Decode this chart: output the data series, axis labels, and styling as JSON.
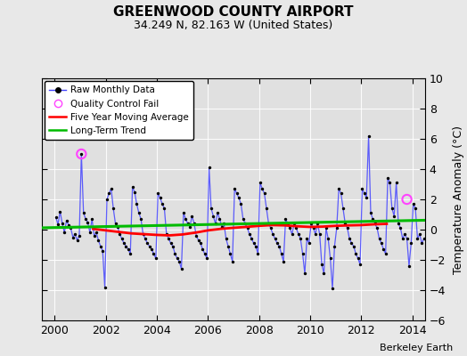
{
  "title": "GREENWOOD COUNTY AIRPORT",
  "subtitle": "34.249 N, 82.163 W (United States)",
  "ylabel": "Temperature Anomaly (°C)",
  "watermark": "Berkeley Earth",
  "ylim": [
    -6,
    10
  ],
  "xlim": [
    1999.5,
    2014.5
  ],
  "yticks": [
    -6,
    -4,
    -2,
    0,
    2,
    4,
    6,
    8,
    10
  ],
  "xticks": [
    2000,
    2002,
    2004,
    2006,
    2008,
    2010,
    2012,
    2014
  ],
  "bg_color": "#e8e8e8",
  "plot_bg_color": "#e0e0e0",
  "raw_color": "#4444ff",
  "moving_avg_color": "#ff0000",
  "trend_color": "#00bb00",
  "qc_fail_color": "#ff44ff",
  "raw_data": [
    [
      2000.042,
      0.8
    ],
    [
      2000.125,
      0.35
    ],
    [
      2000.208,
      1.2
    ],
    [
      2000.292,
      0.4
    ],
    [
      2000.375,
      -0.2
    ],
    [
      2000.458,
      0.6
    ],
    [
      2000.542,
      0.3
    ],
    [
      2000.625,
      0.1
    ],
    [
      2000.708,
      -0.5
    ],
    [
      2000.792,
      -0.3
    ],
    [
      2000.875,
      -0.7
    ],
    [
      2000.958,
      -0.4
    ],
    [
      2001.042,
      5.0
    ],
    [
      2001.125,
      1.1
    ],
    [
      2001.208,
      0.7
    ],
    [
      2001.292,
      0.5
    ],
    [
      2001.375,
      -0.2
    ],
    [
      2001.458,
      0.7
    ],
    [
      2001.542,
      -0.4
    ],
    [
      2001.625,
      -0.2
    ],
    [
      2001.708,
      -0.7
    ],
    [
      2001.792,
      -1.1
    ],
    [
      2001.875,
      -1.4
    ],
    [
      2001.958,
      -3.8
    ],
    [
      2002.042,
      2.0
    ],
    [
      2002.125,
      2.4
    ],
    [
      2002.208,
      2.7
    ],
    [
      2002.292,
      1.4
    ],
    [
      2002.375,
      0.4
    ],
    [
      2002.458,
      0.2
    ],
    [
      2002.542,
      -0.3
    ],
    [
      2002.625,
      -0.6
    ],
    [
      2002.708,
      -0.9
    ],
    [
      2002.792,
      -1.1
    ],
    [
      2002.875,
      -1.3
    ],
    [
      2002.958,
      -1.6
    ],
    [
      2003.042,
      2.8
    ],
    [
      2003.125,
      2.5
    ],
    [
      2003.208,
      1.7
    ],
    [
      2003.292,
      1.1
    ],
    [
      2003.375,
      0.7
    ],
    [
      2003.458,
      -0.3
    ],
    [
      2003.542,
      -0.6
    ],
    [
      2003.625,
      -0.9
    ],
    [
      2003.708,
      -1.1
    ],
    [
      2003.792,
      -1.3
    ],
    [
      2003.875,
      -1.6
    ],
    [
      2003.958,
      -1.9
    ],
    [
      2004.042,
      2.4
    ],
    [
      2004.125,
      2.1
    ],
    [
      2004.208,
      1.7
    ],
    [
      2004.292,
      1.4
    ],
    [
      2004.375,
      -0.3
    ],
    [
      2004.458,
      -0.6
    ],
    [
      2004.542,
      -0.9
    ],
    [
      2004.625,
      -1.1
    ],
    [
      2004.708,
      -1.6
    ],
    [
      2004.792,
      -1.9
    ],
    [
      2004.875,
      -2.1
    ],
    [
      2004.958,
      -2.6
    ],
    [
      2005.042,
      1.1
    ],
    [
      2005.125,
      0.7
    ],
    [
      2005.208,
      0.4
    ],
    [
      2005.292,
      0.2
    ],
    [
      2005.375,
      0.9
    ],
    [
      2005.458,
      0.4
    ],
    [
      2005.542,
      -0.4
    ],
    [
      2005.625,
      -0.7
    ],
    [
      2005.708,
      -0.9
    ],
    [
      2005.792,
      -1.3
    ],
    [
      2005.875,
      -1.6
    ],
    [
      2005.958,
      -1.9
    ],
    [
      2006.042,
      4.1
    ],
    [
      2006.125,
      1.4
    ],
    [
      2006.208,
      0.9
    ],
    [
      2006.292,
      0.4
    ],
    [
      2006.375,
      1.1
    ],
    [
      2006.458,
      0.7
    ],
    [
      2006.542,
      0.2
    ],
    [
      2006.625,
      0.4
    ],
    [
      2006.708,
      -0.6
    ],
    [
      2006.792,
      -1.1
    ],
    [
      2006.875,
      -1.6
    ],
    [
      2006.958,
      -2.1
    ],
    [
      2007.042,
      2.7
    ],
    [
      2007.125,
      2.4
    ],
    [
      2007.208,
      2.1
    ],
    [
      2007.292,
      1.7
    ],
    [
      2007.375,
      0.7
    ],
    [
      2007.458,
      0.4
    ],
    [
      2007.542,
      0.1
    ],
    [
      2007.625,
      -0.3
    ],
    [
      2007.708,
      -0.6
    ],
    [
      2007.792,
      -0.9
    ],
    [
      2007.875,
      -1.1
    ],
    [
      2007.958,
      -1.6
    ],
    [
      2008.042,
      3.1
    ],
    [
      2008.125,
      2.7
    ],
    [
      2008.208,
      2.4
    ],
    [
      2008.292,
      1.4
    ],
    [
      2008.375,
      0.4
    ],
    [
      2008.458,
      0.1
    ],
    [
      2008.542,
      -0.3
    ],
    [
      2008.625,
      -0.6
    ],
    [
      2008.708,
      -0.9
    ],
    [
      2008.792,
      -1.1
    ],
    [
      2008.875,
      -1.6
    ],
    [
      2008.958,
      -2.1
    ],
    [
      2009.042,
      0.7
    ],
    [
      2009.125,
      0.4
    ],
    [
      2009.208,
      0.1
    ],
    [
      2009.292,
      -0.3
    ],
    [
      2009.375,
      0.4
    ],
    [
      2009.458,
      0.1
    ],
    [
      2009.542,
      -0.3
    ],
    [
      2009.625,
      -0.6
    ],
    [
      2009.708,
      -1.6
    ],
    [
      2009.792,
      -2.9
    ],
    [
      2009.875,
      -0.6
    ],
    [
      2009.958,
      -0.9
    ],
    [
      2010.042,
      0.4
    ],
    [
      2010.125,
      0.1
    ],
    [
      2010.208,
      -0.3
    ],
    [
      2010.292,
      0.4
    ],
    [
      2010.375,
      -0.3
    ],
    [
      2010.458,
      -2.3
    ],
    [
      2010.542,
      -2.9
    ],
    [
      2010.625,
      0.1
    ],
    [
      2010.708,
      -0.6
    ],
    [
      2010.792,
      -1.9
    ],
    [
      2010.875,
      -3.9
    ],
    [
      2010.958,
      -1.1
    ],
    [
      2011.042,
      0.1
    ],
    [
      2011.125,
      2.7
    ],
    [
      2011.208,
      2.4
    ],
    [
      2011.292,
      1.4
    ],
    [
      2011.375,
      0.4
    ],
    [
      2011.458,
      0.1
    ],
    [
      2011.542,
      -0.6
    ],
    [
      2011.625,
      -0.9
    ],
    [
      2011.708,
      -1.1
    ],
    [
      2011.792,
      -1.6
    ],
    [
      2011.875,
      -1.9
    ],
    [
      2011.958,
      -2.3
    ],
    [
      2012.042,
      2.7
    ],
    [
      2012.125,
      2.4
    ],
    [
      2012.208,
      2.1
    ],
    [
      2012.292,
      6.2
    ],
    [
      2012.375,
      1.1
    ],
    [
      2012.458,
      0.7
    ],
    [
      2012.542,
      0.4
    ],
    [
      2012.625,
      0.1
    ],
    [
      2012.708,
      -0.6
    ],
    [
      2012.792,
      -0.9
    ],
    [
      2012.875,
      -1.3
    ],
    [
      2012.958,
      -1.6
    ],
    [
      2013.042,
      3.4
    ],
    [
      2013.125,
      3.1
    ],
    [
      2013.208,
      1.4
    ],
    [
      2013.292,
      0.9
    ],
    [
      2013.375,
      3.1
    ],
    [
      2013.458,
      0.4
    ],
    [
      2013.542,
      0.1
    ],
    [
      2013.625,
      -0.6
    ],
    [
      2013.708,
      -0.3
    ],
    [
      2013.792,
      -0.6
    ],
    [
      2013.875,
      -2.4
    ],
    [
      2013.958,
      -0.9
    ],
    [
      2014.042,
      1.7
    ],
    [
      2014.125,
      1.4
    ],
    [
      2014.208,
      -0.6
    ],
    [
      2014.292,
      -0.3
    ],
    [
      2014.375,
      -0.9
    ],
    [
      2014.458,
      -0.6
    ]
  ],
  "qc_fail_points": [
    [
      2001.042,
      5.0
    ],
    [
      2013.792,
      2.0
    ]
  ],
  "moving_avg": [
    [
      2001.5,
      0.05
    ],
    [
      2002.0,
      -0.05
    ],
    [
      2002.5,
      -0.15
    ],
    [
      2003.0,
      -0.25
    ],
    [
      2003.5,
      -0.3
    ],
    [
      2004.0,
      -0.35
    ],
    [
      2004.5,
      -0.38
    ],
    [
      2005.0,
      -0.32
    ],
    [
      2005.5,
      -0.2
    ],
    [
      2006.0,
      -0.05
    ],
    [
      2006.5,
      0.05
    ],
    [
      2007.0,
      0.12
    ],
    [
      2007.5,
      0.18
    ],
    [
      2008.0,
      0.25
    ],
    [
      2008.5,
      0.3
    ],
    [
      2009.0,
      0.28
    ],
    [
      2009.5,
      0.22
    ],
    [
      2010.0,
      0.18
    ],
    [
      2010.5,
      0.2
    ],
    [
      2011.0,
      0.25
    ],
    [
      2011.5,
      0.28
    ],
    [
      2012.0,
      0.3
    ],
    [
      2012.5,
      0.35
    ],
    [
      2013.0,
      0.38
    ]
  ],
  "trend_x": [
    1999.5,
    2014.5
  ],
  "trend_y": [
    0.12,
    0.62
  ]
}
